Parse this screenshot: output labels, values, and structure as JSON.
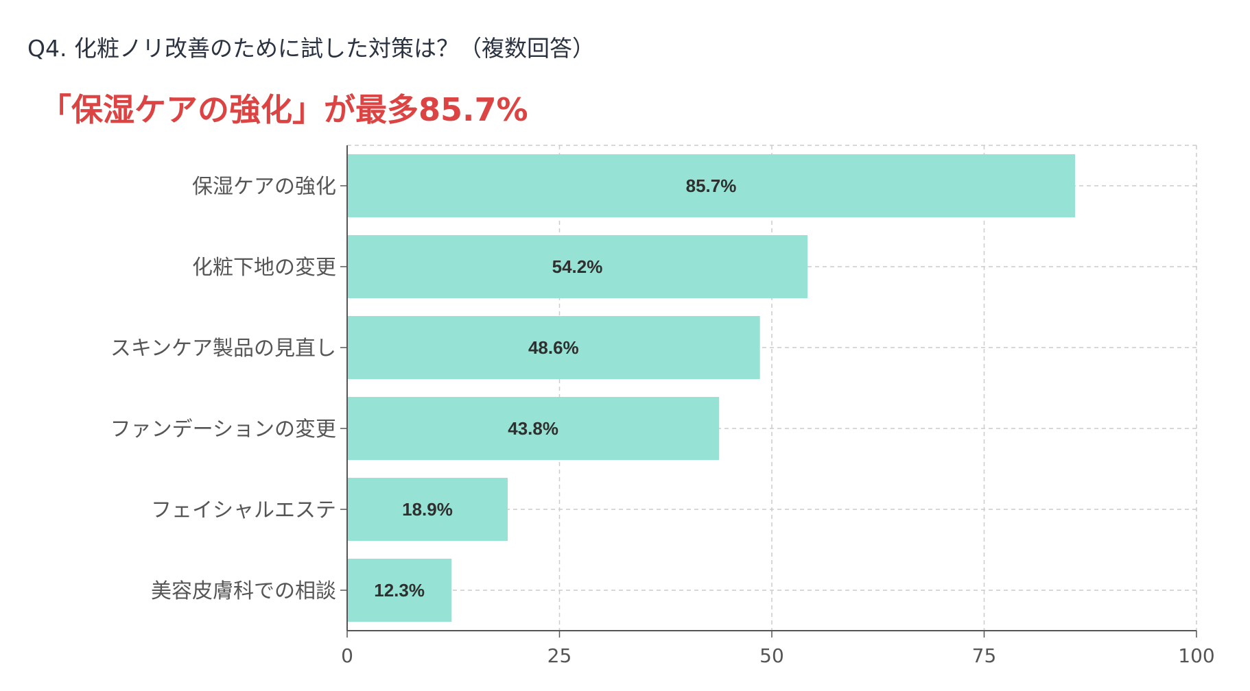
{
  "header": {
    "question": "Q4. 化粧ノリ改善のために試した対策は？（複数回答）",
    "headline": "「保湿ケアの強化」が最多85.7%"
  },
  "chart_data": {
    "type": "bar",
    "orientation": "horizontal",
    "categories": [
      "保湿ケアの強化",
      "化粧下地の変更",
      "スキンケア製品の見直し",
      "ファンデーションの変更",
      "フェイシャルエステ",
      "美容皮膚科での相談"
    ],
    "values": [
      85.7,
      54.2,
      48.6,
      43.8,
      18.9,
      12.3
    ],
    "value_labels": [
      "85.7%",
      "54.2%",
      "48.6%",
      "43.8%",
      "18.9%",
      "12.3%"
    ],
    "xlim": [
      0,
      100
    ],
    "xticks": [
      0,
      25,
      50,
      75,
      100
    ],
    "xtick_labels": [
      "0",
      "25",
      "50",
      "75",
      "100"
    ],
    "grid": true,
    "bar_color": "#96e2d4",
    "title": "",
    "xlabel": "",
    "ylabel": ""
  }
}
